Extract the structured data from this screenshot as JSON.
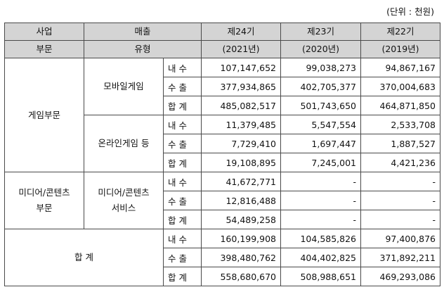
{
  "unit_label": "(단위 : 천원)",
  "header": {
    "col1": [
      "사업",
      "부문"
    ],
    "col2": [
      "매출",
      "유형"
    ],
    "years": [
      [
        "제24기",
        "(2021년)"
      ],
      [
        "제23기",
        "(2020년)"
      ],
      [
        "제22기",
        "(2019년)"
      ]
    ]
  },
  "groups": [
    {
      "segment": [
        "게임부문"
      ],
      "products": [
        {
          "type": [
            "모바일게임"
          ],
          "rows": [
            {
              "label": "내 수",
              "values": [
                "107,147,652",
                "99,038,273",
                "94,867,167"
              ]
            },
            {
              "label": "수 출",
              "values": [
                "377,934,865",
                "402,705,377",
                "370,004,683"
              ]
            },
            {
              "label": "합 계",
              "values": [
                "485,082,517",
                "501,743,650",
                "464,871,850"
              ]
            }
          ]
        },
        {
          "type": [
            "온라인게임 등"
          ],
          "rows": [
            {
              "label": "내 수",
              "values": [
                "11,379,485",
                "5,547,554",
                "2,533,708"
              ]
            },
            {
              "label": "수 출",
              "values": [
                "7,729,410",
                "1,697,447",
                "1,887,527"
              ]
            },
            {
              "label": "합 계",
              "values": [
                "19,108,895",
                "7,245,001",
                "4,421,236"
              ]
            }
          ]
        }
      ]
    },
    {
      "segment": [
        "미디어/콘텐츠",
        "부문"
      ],
      "products": [
        {
          "type": [
            "미디어/콘텐츠",
            "서비스"
          ],
          "rows": [
            {
              "label": "내 수",
              "values": [
                "41,672,771",
                "-",
                "-"
              ]
            },
            {
              "label": "수 출",
              "values": [
                "12,816,488",
                "-",
                "-"
              ]
            },
            {
              "label": "합 계",
              "values": [
                "54,489,258",
                "-",
                "-"
              ]
            }
          ]
        }
      ]
    }
  ],
  "total": {
    "label": "합 계",
    "rows": [
      {
        "label": "내 수",
        "values": [
          "160,199,908",
          "104,585,826",
          "97,400,876"
        ]
      },
      {
        "label": "수 출",
        "values": [
          "398,480,762",
          "404,402,825",
          "371,892,211"
        ]
      },
      {
        "label": "합 계",
        "values": [
          "558,680,670",
          "508,988,651",
          "469,293,086"
        ]
      }
    ]
  }
}
